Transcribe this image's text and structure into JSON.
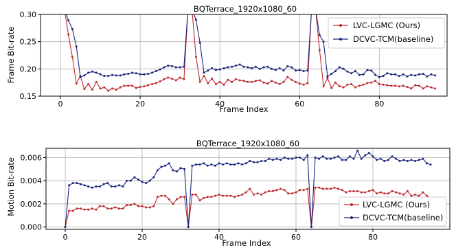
{
  "chart_data": [
    {
      "type": "line",
      "title": "BQTerrace_1920x1080_60",
      "xlabel": "Frame Index",
      "ylabel": "Frame Bit-rate",
      "xlim": [
        -5,
        97
      ],
      "ylim": [
        0.15,
        0.3
      ],
      "xticks": [
        0,
        20,
        40,
        60,
        80
      ],
      "yticks": [
        0.15,
        0.2,
        0.25,
        0.3
      ],
      "ytick_labels": [
        "0.15",
        "0.20",
        "0.25",
        "0.30"
      ],
      "grid": true,
      "legend_position": "top-right",
      "x": [
        0,
        1,
        2,
        3,
        4,
        5,
        6,
        7,
        8,
        9,
        10,
        11,
        12,
        13,
        14,
        15,
        16,
        17,
        18,
        19,
        20,
        21,
        22,
        23,
        24,
        25,
        26,
        27,
        28,
        29,
        30,
        31,
        32,
        33,
        34,
        35,
        36,
        37,
        38,
        39,
        40,
        41,
        42,
        43,
        44,
        45,
        46,
        47,
        48,
        49,
        50,
        51,
        52,
        53,
        54,
        55,
        56,
        57,
        58,
        59,
        60,
        61,
        62,
        63,
        64,
        65,
        66,
        67,
        68,
        69,
        70,
        71,
        72,
        73,
        74,
        75,
        76,
        77,
        78,
        79,
        80,
        81,
        82,
        83,
        84,
        85,
        86,
        87,
        88,
        89,
        90,
        91,
        92,
        93,
        94
      ],
      "series": [
        {
          "name": "LVC-LGMC (Ours)",
          "color": "#c0282d",
          "values": [
            0.31,
            0.31,
            0.263,
            0.222,
            0.173,
            0.187,
            0.163,
            0.172,
            0.162,
            0.176,
            0.164,
            0.166,
            0.16,
            0.164,
            0.162,
            0.166,
            0.169,
            0.169,
            0.169,
            0.165,
            0.167,
            0.168,
            0.17,
            0.172,
            0.174,
            0.177,
            0.181,
            0.184,
            0.182,
            0.179,
            0.184,
            0.181,
            0.31,
            0.31,
            0.222,
            0.176,
            0.187,
            0.174,
            0.182,
            0.172,
            0.176,
            0.171,
            0.18,
            0.176,
            0.181,
            0.179,
            0.178,
            0.176,
            0.176,
            0.178,
            0.179,
            0.175,
            0.173,
            0.178,
            0.175,
            0.172,
            0.176,
            0.185,
            0.18,
            0.176,
            0.173,
            0.171,
            0.174,
            0.31,
            0.31,
            0.235,
            0.168,
            0.183,
            0.165,
            0.175,
            0.168,
            0.166,
            0.171,
            0.172,
            0.166,
            0.169,
            0.171,
            0.174,
            0.175,
            0.178,
            0.172,
            0.171,
            0.17,
            0.169,
            0.169,
            0.168,
            0.169,
            0.167,
            0.164,
            0.17,
            0.169,
            0.164,
            0.168,
            0.166,
            0.164
          ]
        },
        {
          "name": "DCVC-TCM(baseline)",
          "color": "#1a237e",
          "values": [
            0.31,
            0.31,
            0.289,
            0.273,
            0.241,
            0.185,
            0.188,
            0.193,
            0.195,
            0.193,
            0.19,
            0.187,
            0.187,
            0.189,
            0.188,
            0.188,
            0.19,
            0.191,
            0.193,
            0.192,
            0.19,
            0.19,
            0.191,
            0.193,
            0.196,
            0.199,
            0.203,
            0.206,
            0.205,
            0.203,
            0.203,
            0.204,
            0.31,
            0.31,
            0.29,
            0.248,
            0.193,
            0.197,
            0.201,
            0.198,
            0.199,
            0.201,
            0.203,
            0.204,
            0.206,
            0.208,
            0.204,
            0.203,
            0.201,
            0.204,
            0.2,
            0.203,
            0.204,
            0.2,
            0.198,
            0.201,
            0.197,
            0.205,
            0.203,
            0.197,
            0.198,
            0.196,
            0.197,
            0.31,
            0.31,
            0.262,
            0.25,
            0.186,
            0.191,
            0.196,
            0.203,
            0.2,
            0.195,
            0.192,
            0.196,
            0.189,
            0.19,
            0.198,
            0.197,
            0.189,
            0.185,
            0.187,
            0.192,
            0.19,
            0.19,
            0.187,
            0.19,
            0.186,
            0.189,
            0.188,
            0.19,
            0.191,
            0.186,
            0.19,
            0.188
          ]
        }
      ]
    },
    {
      "type": "line",
      "title": "BQTerrace_1920x1080_60",
      "xlabel": "Frame Index",
      "ylabel": "Motion Bit-rate",
      "xlim": [
        -5,
        100
      ],
      "ylim": [
        -0.0002,
        0.0068
      ],
      "xticks": [
        0,
        20,
        40,
        60,
        80
      ],
      "yticks": [
        0.0,
        0.002,
        0.004,
        0.006
      ],
      "ytick_labels": [
        "0.000",
        "0.002",
        "0.004",
        "0.006"
      ],
      "grid": true,
      "legend_position": "bottom-right",
      "x": [
        0,
        1,
        2,
        3,
        4,
        5,
        6,
        7,
        8,
        9,
        10,
        11,
        12,
        13,
        14,
        15,
        16,
        17,
        18,
        19,
        20,
        21,
        22,
        23,
        24,
        25,
        26,
        27,
        28,
        29,
        30,
        31,
        32,
        33,
        34,
        35,
        36,
        37,
        38,
        39,
        40,
        41,
        42,
        43,
        44,
        45,
        46,
        47,
        48,
        49,
        50,
        51,
        52,
        53,
        54,
        55,
        56,
        57,
        58,
        59,
        60,
        61,
        62,
        63,
        64,
        65,
        66,
        67,
        68,
        69,
        70,
        71,
        72,
        73,
        74,
        75,
        76,
        77,
        78,
        79,
        80,
        81,
        82,
        83,
        84,
        85,
        86,
        87,
        88,
        89,
        90,
        91,
        92,
        93,
        94,
        95
      ],
      "series": [
        {
          "name": "LVC-LGMC (Ours)",
          "color": "#c0282d",
          "values": [
            0.0,
            0.0014,
            0.0014,
            0.0016,
            0.0016,
            0.0015,
            0.0015,
            0.0016,
            0.0015,
            0.0018,
            0.0018,
            0.0016,
            0.0016,
            0.0017,
            0.0016,
            0.0016,
            0.0019,
            0.0019,
            0.002,
            0.0018,
            0.0018,
            0.0017,
            0.0017,
            0.0018,
            0.0026,
            0.0027,
            0.0027,
            0.0024,
            0.002,
            0.0024,
            0.0026,
            0.0026,
            0.0,
            0.0028,
            0.0028,
            0.0023,
            0.0025,
            0.0026,
            0.0026,
            0.0027,
            0.0028,
            0.0027,
            0.0027,
            0.0027,
            0.0026,
            0.0027,
            0.0028,
            0.003,
            0.0033,
            0.0028,
            0.0029,
            0.0028,
            0.003,
            0.0031,
            0.0031,
            0.0032,
            0.0033,
            0.0032,
            0.0029,
            0.0029,
            0.003,
            0.0032,
            0.0032,
            0.0033,
            0.0,
            0.0034,
            0.0034,
            0.0033,
            0.0033,
            0.0033,
            0.0034,
            0.0033,
            0.0032,
            0.003,
            0.0031,
            0.0031,
            0.0031,
            0.003,
            0.003,
            0.0031,
            0.0032,
            0.0029,
            0.003,
            0.0029,
            0.0029,
            0.0031,
            0.003,
            0.0029,
            0.0028,
            0.0031,
            0.0027,
            0.0028,
            0.0027,
            0.003,
            0.0027,
            0.0025
          ]
        },
        {
          "name": "DCVC-TCM(baseline)",
          "color": "#1a237e",
          "values": [
            0.0,
            0.0036,
            0.0038,
            0.0038,
            0.0037,
            0.0036,
            0.0035,
            0.0034,
            0.0035,
            0.0035,
            0.0037,
            0.0038,
            0.0035,
            0.0035,
            0.0036,
            0.0035,
            0.004,
            0.004,
            0.0043,
            0.0041,
            0.0039,
            0.0038,
            0.004,
            0.0043,
            0.0049,
            0.0052,
            0.0053,
            0.0055,
            0.0049,
            0.0048,
            0.0051,
            0.005,
            0.0,
            0.0053,
            0.0054,
            0.0054,
            0.0055,
            0.0053,
            0.0054,
            0.0053,
            0.0055,
            0.0054,
            0.0055,
            0.0054,
            0.0054,
            0.0055,
            0.0054,
            0.0055,
            0.0057,
            0.0056,
            0.0056,
            0.0057,
            0.0057,
            0.0059,
            0.0058,
            0.0059,
            0.0058,
            0.006,
            0.0059,
            0.0059,
            0.006,
            0.006,
            0.0058,
            0.0062,
            0.0,
            0.006,
            0.0059,
            0.0061,
            0.0059,
            0.0059,
            0.006,
            0.0061,
            0.0058,
            0.0058,
            0.0061,
            0.0059,
            0.0066,
            0.0059,
            0.0062,
            0.0064,
            0.0061,
            0.0058,
            0.0059,
            0.0057,
            0.0058,
            0.0061,
            0.0059,
            0.0057,
            0.0058,
            0.0057,
            0.0058,
            0.0057,
            0.0058,
            0.0059,
            0.0055,
            0.0054
          ]
        }
      ]
    }
  ]
}
